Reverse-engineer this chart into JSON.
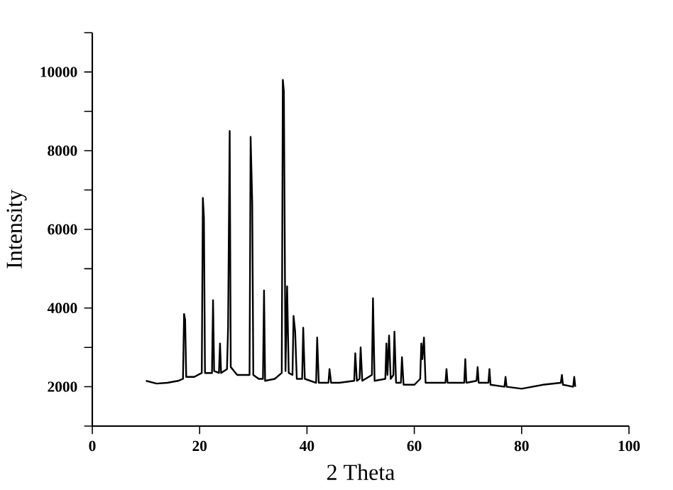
{
  "chart_data": {
    "type": "line",
    "xlabel": "2 Theta",
    "ylabel": "Intensity",
    "xlim": [
      0,
      100
    ],
    "ylim": [
      1000,
      11000
    ],
    "xticks": [
      0,
      20,
      40,
      60,
      80,
      100
    ],
    "yticks": [
      {
        "value": 1000,
        "label": null
      },
      2000,
      {
        "value": 3000,
        "label": null
      },
      4000,
      {
        "value": 5000,
        "label": null
      },
      6000,
      {
        "value": 7000,
        "label": null
      },
      8000,
      {
        "value": 9000,
        "label": null
      },
      10000,
      {
        "value": 11000,
        "label": null
      }
    ],
    "marker": "none",
    "line_style": "solid",
    "series": [
      {
        "color": "#000000",
        "x": [
          10,
          12,
          14,
          16,
          16.9,
          17.1,
          17.3,
          17.5,
          19,
          20.4,
          20.6,
          20.8,
          21.0,
          22.3,
          22.5,
          22.7,
          23.6,
          23.8,
          24.0,
          25.1,
          25.3,
          25.6,
          25.8,
          27,
          29.3,
          29.5,
          29.8,
          30.0,
          31,
          31.8,
          32.0,
          32.2,
          34,
          35.3,
          35.5,
          35.7,
          36.0,
          36.3,
          36.6,
          37.3,
          37.5,
          37.8,
          38.1,
          39.1,
          39.3,
          39.6,
          41.7,
          41.9,
          42.2,
          44.0,
          44.2,
          44.5,
          46,
          48.8,
          49.0,
          49.3,
          49.8,
          50.0,
          50.3,
          52.1,
          52.3,
          52.6,
          54.6,
          54.8,
          55.0,
          55.3,
          55.6,
          56.1,
          56.3,
          56.6,
          57.5,
          57.7,
          58.0,
          60,
          61.1,
          61.3,
          61.5,
          61.8,
          62.1,
          64,
          65.8,
          66.0,
          66.2,
          69.3,
          69.5,
          69.7,
          71.6,
          71.8,
          72.0,
          73.8,
          74.0,
          74.2,
          76.8,
          77.0,
          77.2,
          80,
          84,
          87.3,
          87.5,
          87.7,
          89.6,
          89.8,
          90
        ],
        "values": [
          2150,
          2080,
          2100,
          2150,
          2200,
          3850,
          3700,
          2250,
          2250,
          2350,
          6800,
          6300,
          2350,
          2350,
          4200,
          2400,
          2350,
          3100,
          2350,
          2450,
          3500,
          8500,
          2500,
          2300,
          2300,
          8350,
          6700,
          2300,
          2200,
          2200,
          4450,
          2150,
          2200,
          2350,
          9800,
          9500,
          2400,
          4550,
          2350,
          2300,
          3800,
          3400,
          2200,
          2200,
          3500,
          2200,
          2100,
          3250,
          2100,
          2100,
          2450,
          2100,
          2100,
          2150,
          2850,
          2150,
          2200,
          3000,
          2150,
          2300,
          4250,
          2150,
          2200,
          3100,
          2300,
          3300,
          2200,
          2300,
          3400,
          2100,
          2100,
          2750,
          2050,
          2050,
          2200,
          3100,
          2700,
          3250,
          2100,
          2100,
          2100,
          2450,
          2100,
          2100,
          2700,
          2100,
          2150,
          2500,
          2100,
          2100,
          2450,
          2050,
          2000,
          2250,
          2000,
          1950,
          2050,
          2100,
          2300,
          2050,
          2000,
          2250,
          2000
        ]
      }
    ]
  }
}
